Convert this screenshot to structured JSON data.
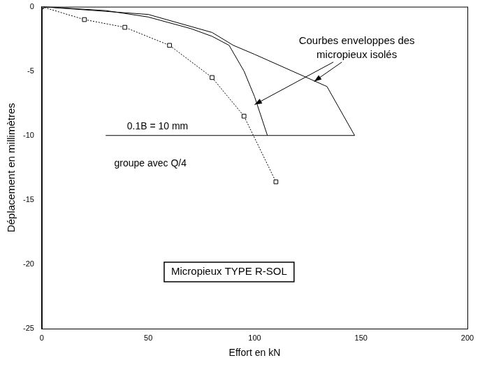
{
  "chart_data": {
    "type": "line",
    "x_label": "Effort en kN",
    "y_label": "Déplacement en millimètres",
    "xlim": [
      0,
      200
    ],
    "xticks": [
      0,
      50,
      100,
      150,
      200
    ],
    "ylim": [
      -25,
      0
    ],
    "yticks": [
      -25,
      -20,
      -15,
      -10,
      -5,
      0
    ],
    "grid": false,
    "series": [
      {
        "name": "groupe avec Q/4",
        "color": "#000000",
        "marker": "square",
        "line_style": "dotted",
        "x": [
          0,
          20,
          39,
          60,
          80,
          95,
          110
        ],
        "values": [
          0,
          -1,
          -1.6,
          -3,
          -5.5,
          -8.5,
          -13.6
        ]
      },
      {
        "color": "#000000",
        "marker": "none",
        "line_style": "solid",
        "x": [
          0,
          30,
          50,
          70,
          80,
          88,
          95,
          100,
          106
        ],
        "values": [
          0,
          -0.3,
          -0.8,
          -1.7,
          -2.3,
          -3,
          -5,
          -7,
          -10
        ]
      },
      {
        "color": "#000000",
        "marker": "none",
        "line_style": "solid",
        "x": [
          0,
          50,
          80,
          90,
          100,
          134,
          147
        ],
        "values": [
          0,
          -0.6,
          -2,
          -3,
          -3.7,
          -6.2,
          -10
        ]
      },
      {
        "name": "0.1B = 10 mm",
        "color": "#000000",
        "marker": "none",
        "line_style": "solid",
        "x": [
          30,
          147
        ],
        "values": [
          -10,
          -10
        ]
      }
    ],
    "annotations": [
      {
        "text": "Courbes enveloppes des micropieux isolés"
      },
      {
        "text": "Micropieux TYPE R-SOL"
      }
    ]
  }
}
